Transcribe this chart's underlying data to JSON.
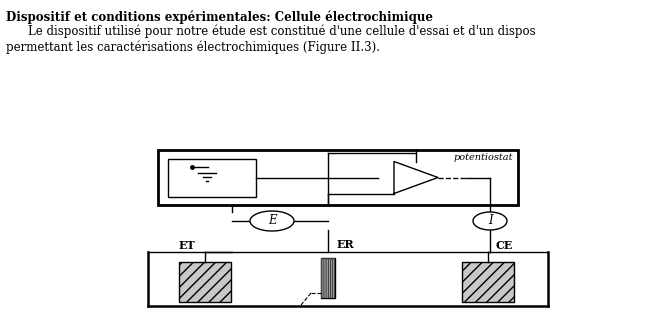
{
  "title": "Dispositif et conditions expérimentales: Cellule électrochimique",
  "body1": "Le dispositif utilisé pour notre étude est constitué d'une cellule d'essai et d'un dispos",
  "body2": "permettant les caractérisations électrochimiques (Figure II.3).",
  "bg": "#ffffff",
  "potentiostat_label": "potentiostat",
  "E_label": "E",
  "I_label": "I",
  "ET_label": "ET",
  "ER_label": "ER",
  "CE_label": "CE"
}
